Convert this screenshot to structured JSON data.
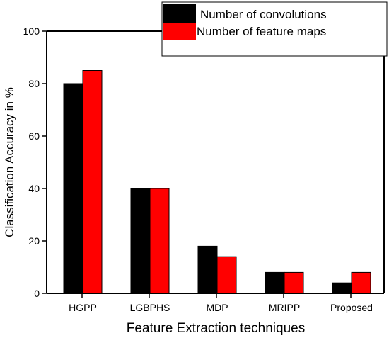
{
  "chart_data": {
    "type": "bar",
    "title": "",
    "xlabel": "Feature Extraction techniques",
    "ylabel": "Classification Accuracy in %",
    "categories": [
      "HGPP",
      "LGBPHS",
      "MDP",
      "MRIPP",
      "Proposed"
    ],
    "series": [
      {
        "name": "Number of convolutions",
        "color": "#000000",
        "values": [
          80,
          40,
          18,
          8,
          4
        ]
      },
      {
        "name": "Number of feature maps",
        "color": "#ff0000",
        "values": [
          85,
          40,
          14,
          8,
          8
        ]
      }
    ],
    "ylim": [
      0,
      100
    ],
    "yticks": [
      0,
      20,
      40,
      60,
      80,
      100
    ],
    "grid": false,
    "legend_position": "top-right"
  }
}
